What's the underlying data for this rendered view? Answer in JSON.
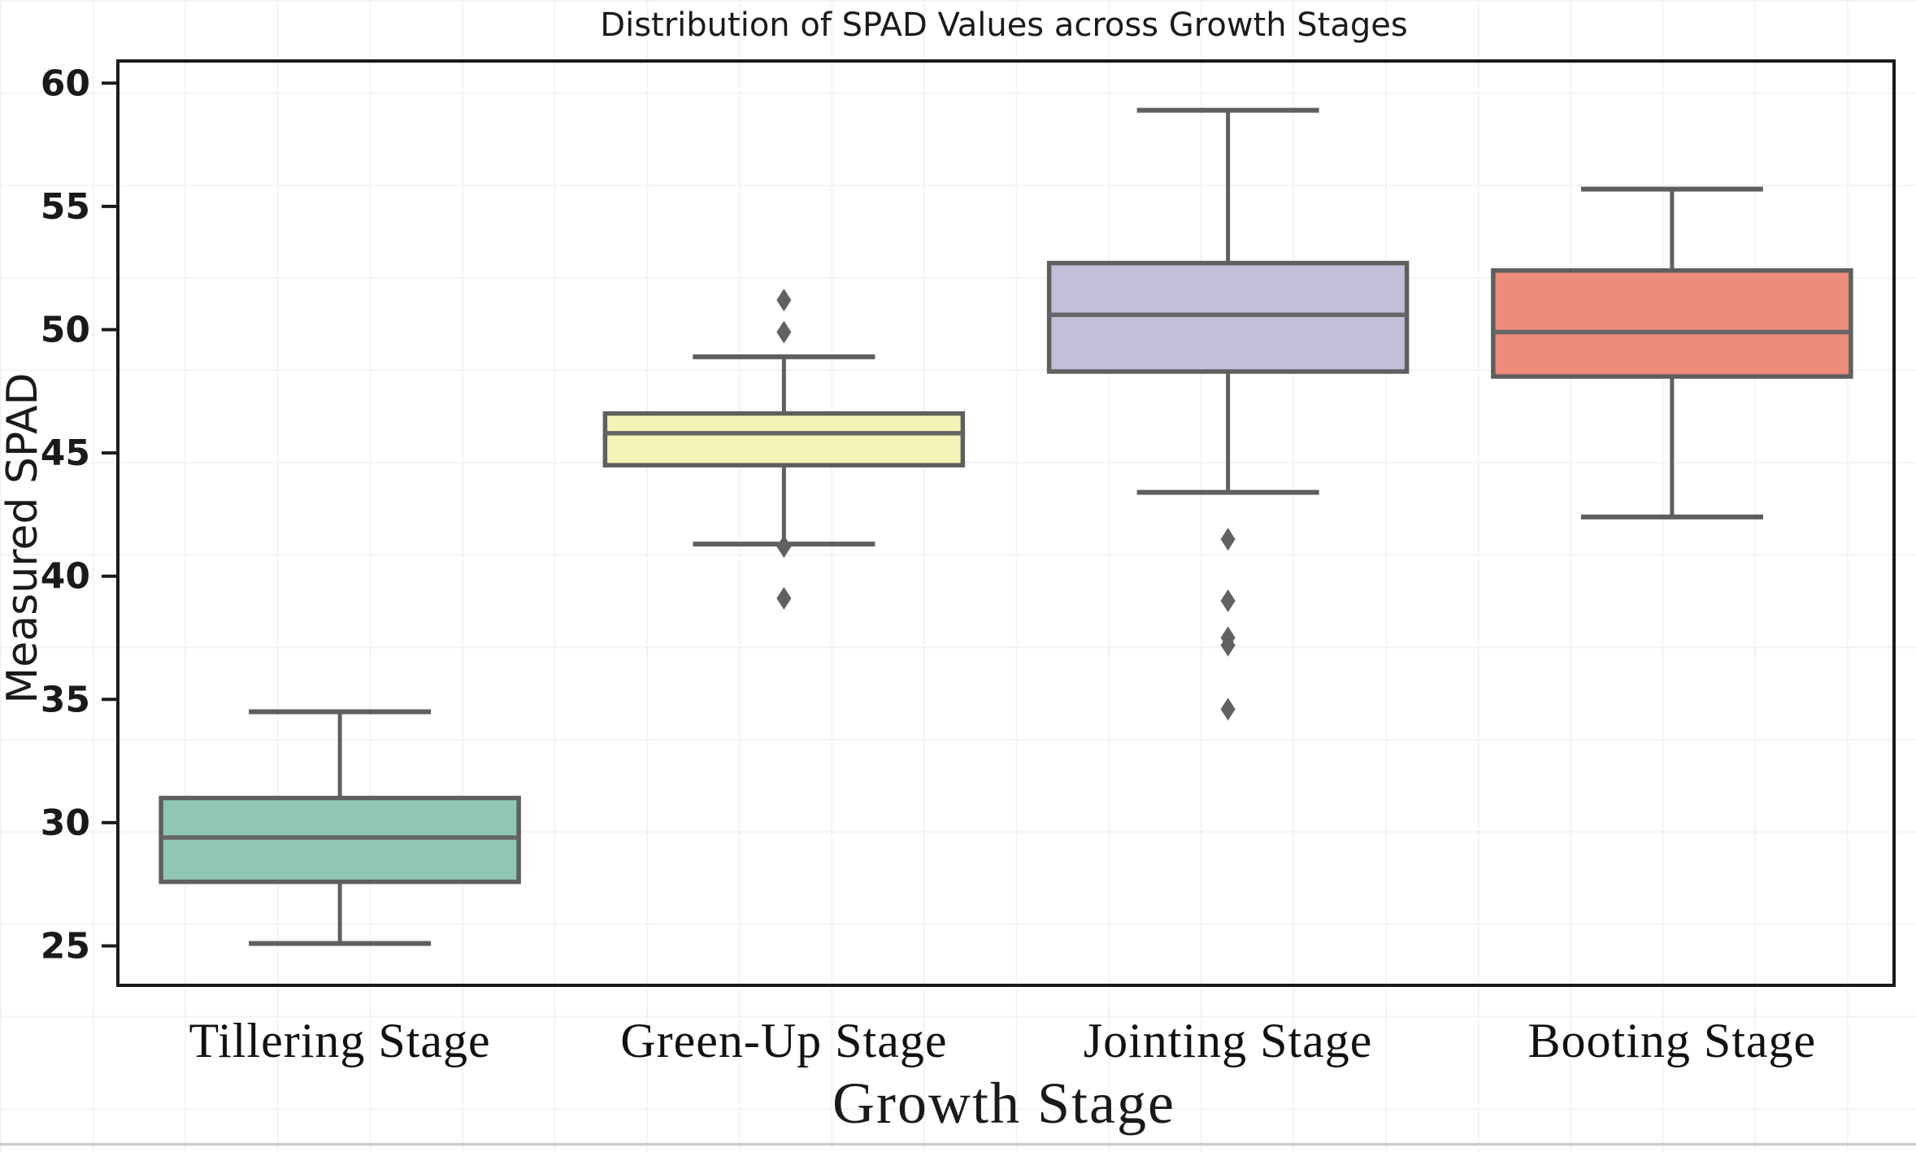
{
  "chart": {
    "title": "Distribution of SPAD Values across Growth Stages",
    "xlabel": "Growth Stage",
    "ylabel": "Measured SPAD"
  },
  "chart_data": {
    "type": "box",
    "title": "Distribution of SPAD Values across Growth Stages",
    "xlabel": "Growth Stage",
    "ylabel": "Measured SPAD",
    "categories": [
      "Tillering Stage",
      "Green-Up Stage",
      "Jointing Stage",
      "Booting Stage"
    ],
    "yticks": [
      25,
      30,
      35,
      40,
      45,
      50,
      55,
      60
    ],
    "ylim": [
      23.4,
      60.9
    ],
    "grid": "off",
    "legend": "none",
    "boxes": [
      {
        "label": "Tillering Stage",
        "color": "#90C6B5",
        "whisker_low": 25.1,
        "q1": 27.6,
        "median": 29.4,
        "q3": 31.0,
        "whisker_high": 34.5,
        "outliers": []
      },
      {
        "label": "Green-Up Stage",
        "color": "#F5F2B8",
        "whisker_low": 41.3,
        "q1": 44.5,
        "median": 45.8,
        "q3": 46.6,
        "whisker_high": 48.9,
        "outliers": [
          51.2,
          49.9,
          41.2,
          39.1
        ]
      },
      {
        "label": "Jointing Stage",
        "color": "#C1BED7",
        "whisker_low": 43.4,
        "q1": 48.3,
        "median": 50.6,
        "q3": 52.7,
        "whisker_high": 58.9,
        "outliers": [
          41.5,
          39.0,
          37.5,
          37.2,
          34.6
        ]
      },
      {
        "label": "Booting Stage",
        "color": "#EE8C7C",
        "whisker_low": 42.4,
        "q1": 48.1,
        "median": 49.9,
        "q3": 52.4,
        "whisker_high": 55.7,
        "outliers": []
      }
    ],
    "style": {
      "box_edge_color": "#5f5f5f",
      "median_color": "#666666",
      "whisker_color": "#5f5f5f",
      "outlier_color": "#616161",
      "spine_color": "#1a1a1a",
      "background": "#ffffff"
    }
  }
}
